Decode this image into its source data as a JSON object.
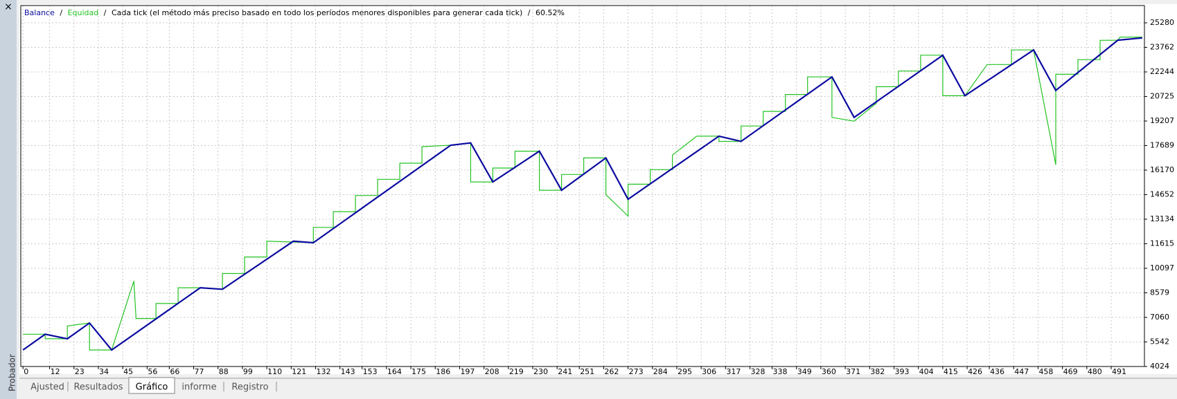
{
  "window": {
    "close": "×",
    "side_label": "Probador",
    "tabs": [
      "Ajusted",
      "Resultados",
      "Gráfico",
      "informe",
      "Registro"
    ],
    "active_tab": 2
  },
  "chart_data": {
    "type": "line",
    "header": {
      "separator": "/",
      "mode": "Cada tick (el método más preciso basado en todo los períodos menores disponibles para generar cada tick)",
      "quality": "60.52%"
    },
    "series": [
      {
        "name": "Balance",
        "color": "#0a0aa0",
        "x": [
          0,
          10,
          20,
          30,
          40,
          80,
          90,
          122,
          131,
          193,
          202,
          212,
          233,
          243,
          263,
          273,
          314,
          324,
          365,
          375,
          415,
          425,
          456,
          466,
          494,
          505
        ],
        "values": [
          5045,
          6020,
          5740,
          6715,
          5045,
          8896,
          8803,
          11773,
          11680,
          17712,
          17851,
          15438,
          17341,
          14928,
          16923,
          14372,
          18270,
          17945,
          21936,
          19429,
          23280,
          20774,
          23605,
          21099,
          24208,
          24347
        ]
      },
      {
        "name": "Equidad",
        "color": "#22c322",
        "x": [
          0,
          10,
          10,
          20,
          20,
          30,
          30,
          40,
          50,
          51,
          60,
          60,
          70,
          70,
          80,
          90,
          90,
          100,
          100,
          110,
          110,
          131,
          131,
          140,
          140,
          150,
          150,
          160,
          160,
          170,
          170,
          180,
          180,
          193,
          202,
          202,
          212,
          212,
          222,
          222,
          233,
          233,
          243,
          243,
          253,
          253,
          263,
          263,
          273,
          273,
          283,
          283,
          293,
          293,
          304,
          314,
          314,
          324,
          324,
          334,
          334,
          344,
          344,
          354,
          354,
          365,
          365,
          375,
          385,
          385,
          395,
          395,
          405,
          405,
          415,
          415,
          425,
          435,
          446,
          446,
          456,
          466,
          466,
          476,
          476,
          486,
          486,
          494,
          495,
          505
        ],
        "values": [
          6020,
          6020,
          5740,
          5740,
          6530,
          6715,
          5045,
          5045,
          9314,
          6994,
          6994,
          7922,
          7922,
          8896,
          8896,
          8803,
          9778,
          9778,
          10800,
          10800,
          11773,
          11680,
          12630,
          12630,
          13600,
          13600,
          14600,
          14600,
          15600,
          15600,
          16600,
          16600,
          17620,
          17712,
          17851,
          15438,
          15438,
          16300,
          16300,
          17341,
          17341,
          14928,
          14928,
          15900,
          15900,
          16923,
          16923,
          14650,
          13330,
          15300,
          15300,
          16200,
          16200,
          17100,
          18270,
          18270,
          17945,
          17945,
          18900,
          18900,
          19800,
          19800,
          20850,
          20850,
          21936,
          21936,
          19429,
          19200,
          20300,
          21330,
          21330,
          22300,
          22300,
          23280,
          23280,
          20774,
          20774,
          22700,
          22700,
          23605,
          23605,
          16505,
          22100,
          22100,
          23000,
          23000,
          24200,
          24208,
          24400,
          24400
        ]
      }
    ],
    "xlim": [
      -1,
      506
    ],
    "xticks": [
      0,
      12,
      23,
      34,
      45,
      56,
      66,
      77,
      88,
      99,
      110,
      121,
      132,
      143,
      153,
      164,
      175,
      186,
      197,
      208,
      219,
      230,
      241,
      251,
      262,
      273,
      284,
      295,
      306,
      317,
      328,
      338,
      349,
      360,
      371,
      382,
      393,
      404,
      415,
      426,
      436,
      447,
      458,
      469,
      480,
      491
    ],
    "ylim": [
      4024,
      26350
    ],
    "yticks": [
      25280,
      23762,
      22244,
      20725,
      19207,
      17689,
      16170,
      14652,
      13134,
      11615,
      10097,
      8579,
      7060,
      5542,
      4024
    ],
    "grid": true
  }
}
